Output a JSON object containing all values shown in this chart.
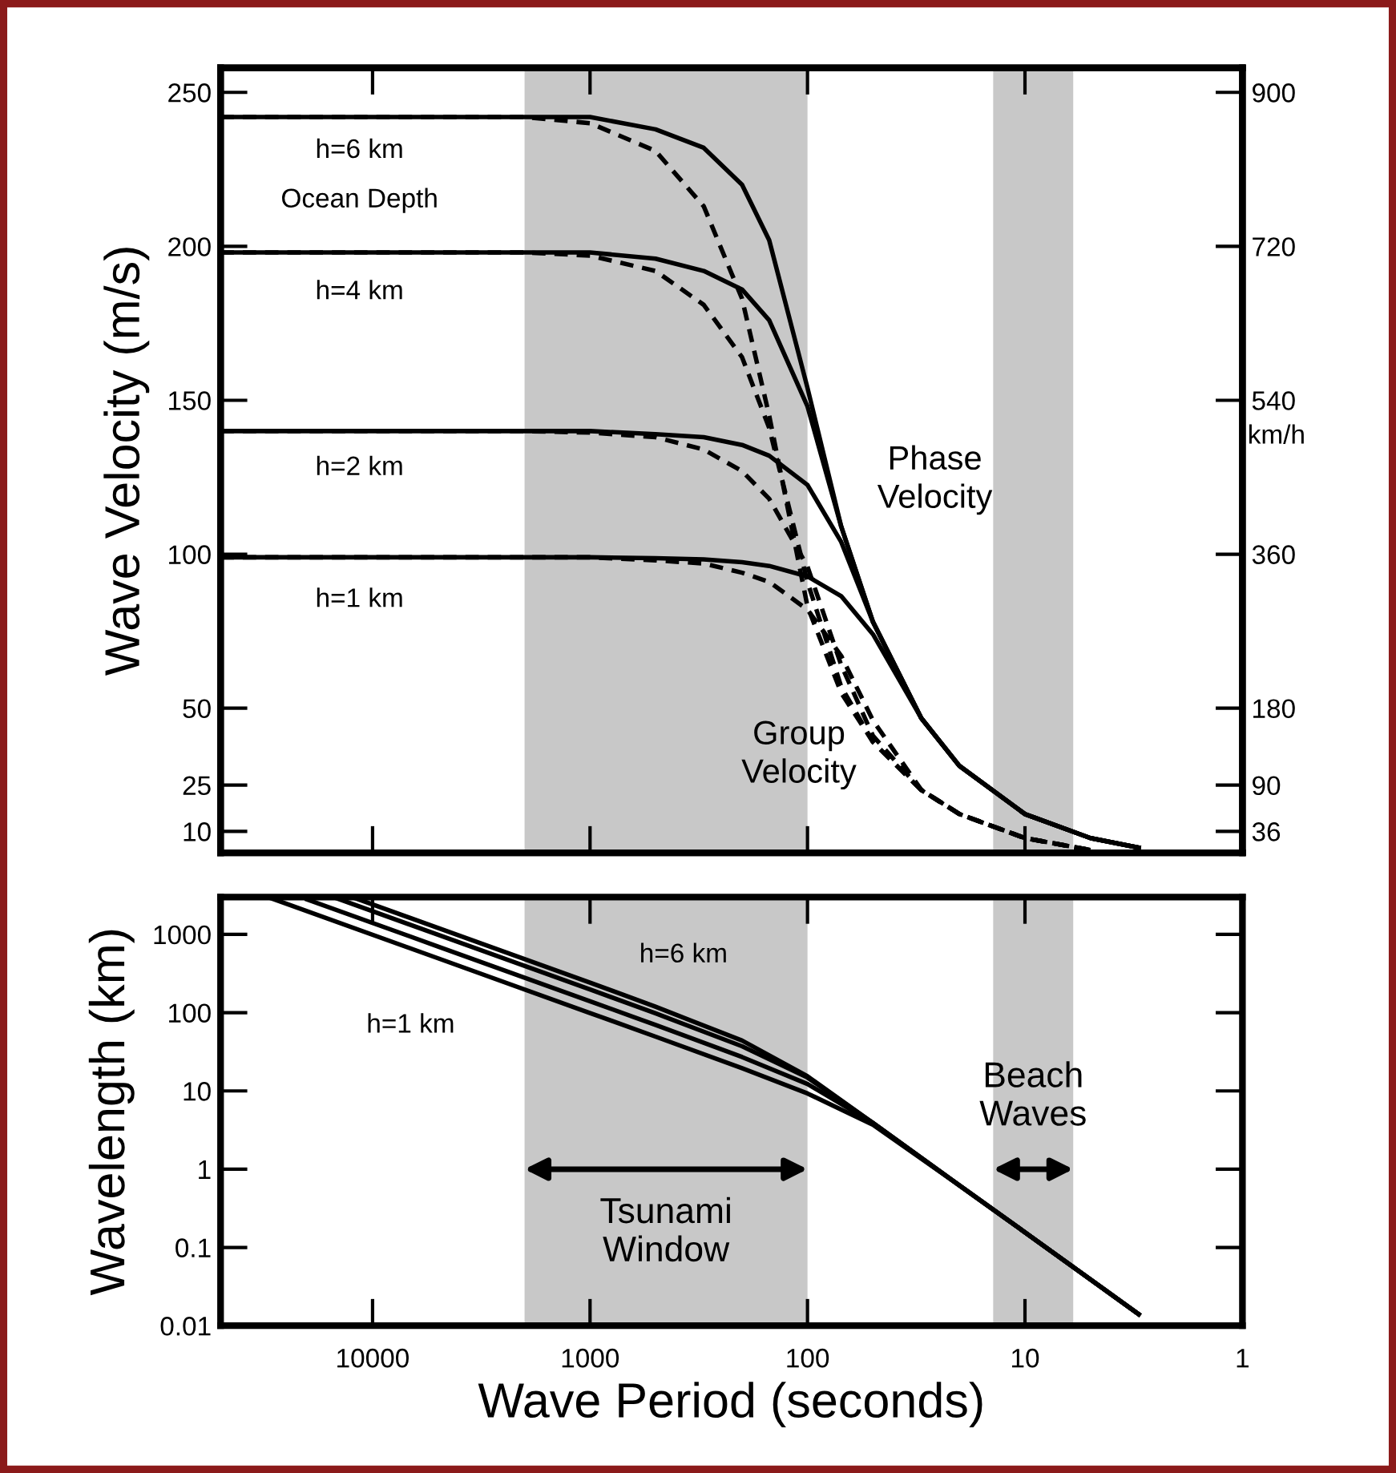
{
  "chart_data": [
    {
      "type": "line",
      "ylabel": "Wave Velocity (m/s)",
      "y2label": "km/h",
      "x": [
        50000,
        2000,
        1000,
        500,
        300,
        200,
        150,
        100,
        70,
        50,
        30,
        20,
        10,
        5,
        3
      ],
      "xlim": [
        50000,
        1
      ],
      "xticks": [
        10000,
        1000,
        100,
        10,
        1
      ],
      "log": "x",
      "ylim": [
        3,
        258
      ],
      "yticks": [
        10,
        25,
        50,
        100,
        150,
        200,
        250
      ],
      "y2lim": [
        10.8,
        928.8
      ],
      "y2ticks": [
        36,
        90,
        180,
        360,
        540,
        720,
        900
      ],
      "tick_labels": "y",
      "grid": false,
      "legend": false,
      "series": [
        {
          "color": "#000000",
          "line_style": "solid",
          "values": [
            242,
            242,
            242,
            238,
            232,
            220,
            202,
            154,
            109,
            78,
            46.8,
            31.2,
            15.6,
            7.8,
            4.7
          ]
        },
        {
          "color": "#000000",
          "line_style": "dashed",
          "values": [
            242,
            242,
            240,
            231,
            213,
            183,
            145,
            83,
            55,
            39,
            23.4,
            15.6,
            7.8,
            3.9,
            null
          ]
        },
        {
          "color": "#000000",
          "line_style": "solid",
          "values": [
            198,
            198,
            198,
            196,
            192,
            186,
            176,
            148,
            109,
            78,
            46.8,
            31.2,
            15.6,
            7.8,
            4.7
          ]
        },
        {
          "color": "#000000",
          "line_style": "dashed",
          "values": [
            198,
            198,
            197,
            192,
            181,
            164,
            141,
            91,
            57,
            39,
            23.4,
            15.6,
            7.8,
            3.9,
            null
          ]
        },
        {
          "color": "#000000",
          "line_style": "solid",
          "values": [
            140,
            140,
            140,
            139,
            138,
            135.5,
            132,
            122.5,
            104,
            78,
            46.8,
            31.2,
            15.6,
            7.8,
            4.7
          ]
        },
        {
          "color": "#000000",
          "line_style": "dashed",
          "values": [
            140,
            140,
            139.5,
            138,
            134,
            127,
            118,
            96,
            64,
            41,
            23.4,
            15.6,
            7.8,
            3.9,
            null
          ]
        },
        {
          "color": "#000000",
          "line_style": "solid",
          "values": [
            99,
            99,
            99,
            98.7,
            98.3,
            97.4,
            96.2,
            92.8,
            86.4,
            74,
            46.8,
            31.2,
            15.6,
            7.8,
            4.7
          ]
        },
        {
          "color": "#000000",
          "line_style": "dashed",
          "values": [
            99,
            99,
            99,
            98,
            97,
            94,
            91,
            82,
            67,
            46,
            23.5,
            15.6,
            7.8,
            3.9,
            null
          ]
        }
      ],
      "bands": [
        {
          "axis": "x",
          "from": 2000,
          "to": 100,
          "color": "#c8c8c8"
        },
        {
          "axis": "x",
          "from": 14,
          "to": 6,
          "color": "#c8c8c8"
        }
      ],
      "annotations": [
        "h=6 km",
        "Ocean Depth",
        "h=4 km",
        "h=2 km",
        "h=1 km",
        "Phase\nVelocity",
        "Group\nVelocity"
      ]
    },
    {
      "type": "line",
      "xlabel": "Wave Period (seconds)",
      "ylabel": "Wavelength (km)",
      "log": "xy",
      "xlim": [
        50000,
        1
      ],
      "xticks": [
        10000,
        1000,
        100,
        10,
        1
      ],
      "ylim": [
        0.01,
        3000
      ],
      "yticks": [
        0.01,
        0.1,
        1,
        10,
        100,
        1000
      ],
      "grid": false,
      "legend": false,
      "series": [
        {
          "color": "#000000",
          "line_style": "solid",
          "x": [
            30000,
            5000,
            1000,
            500,
            200,
            100,
            50,
            20,
            10,
            5,
            3
          ],
          "values": [
            2970,
            495,
            99,
            49.4,
            19.5,
            9.28,
            3.7,
            0.62,
            0.156,
            0.039,
            0.014
          ]
        },
        {
          "color": "#000000",
          "line_style": "solid",
          "x": [
            20000,
            5000,
            1000,
            500,
            200,
            100,
            50,
            20,
            10,
            5,
            3
          ],
          "values": [
            2800,
            700,
            140,
            69.6,
            27.1,
            12.25,
            3.9,
            0.62,
            0.156,
            0.039,
            0.014
          ]
        },
        {
          "color": "#000000",
          "line_style": "solid",
          "x": [
            15000,
            5000,
            1000,
            500,
            200,
            100,
            50,
            20,
            10,
            5,
            3
          ],
          "values": [
            2970,
            990,
            198,
            98,
            37.2,
            14.8,
            3.9,
            0.62,
            0.156,
            0.039,
            0.014
          ]
        },
        {
          "color": "#000000",
          "line_style": "solid",
          "x": [
            12000,
            5000,
            1000,
            500,
            200,
            100,
            50,
            20,
            10,
            5,
            3
          ],
          "values": [
            2900,
            1210,
            242,
            119,
            44,
            15.4,
            3.9,
            0.62,
            0.156,
            0.039,
            0.014
          ]
        }
      ],
      "bands": [
        {
          "axis": "x",
          "from": 2000,
          "to": 100,
          "color": "#c8c8c8",
          "label": "Tsunami\nWindow"
        },
        {
          "axis": "x",
          "from": 14,
          "to": 6,
          "color": "#c8c8c8",
          "label": "Beach\nWaves"
        }
      ],
      "annotations": [
        "h=6 km",
        "h=1 km"
      ]
    }
  ]
}
